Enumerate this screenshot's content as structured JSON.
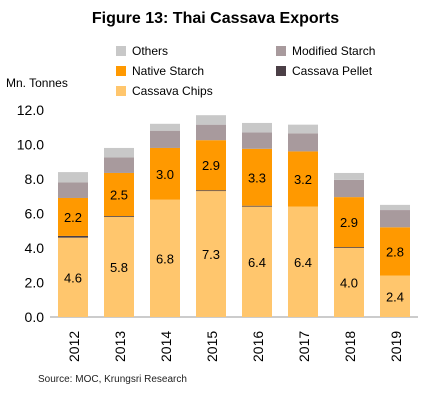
{
  "chart_data": {
    "type": "bar",
    "stacked": true,
    "title": "Figure 13: Thai Cassava Exports",
    "ylabel": "Mn. Tonnes",
    "xlabel": "",
    "categories": [
      "2012",
      "2013",
      "2014",
      "2015",
      "2016",
      "2017",
      "2018",
      "2019"
    ],
    "ylim": [
      0,
      12
    ],
    "yticks": [
      "0.0",
      "2.0",
      "4.0",
      "6.0",
      "8.0",
      "10.0",
      "12.0"
    ],
    "series": [
      {
        "name": "Cassava Chips",
        "color": "#FFC66D",
        "values": [
          4.6,
          5.8,
          6.8,
          7.3,
          6.4,
          6.4,
          4.0,
          2.4
        ],
        "labels": [
          "4.6",
          "5.8",
          "6.8",
          "7.3",
          "6.4",
          "6.4",
          "4.0",
          "2.4"
        ]
      },
      {
        "name": "Cassava Pellet",
        "color": "#4B3F46",
        "values": [
          0.1,
          0.05,
          0.0,
          0.05,
          0.05,
          0.0,
          0.05,
          0.0
        ]
      },
      {
        "name": "Native Starch",
        "color": "#FF9900",
        "values": [
          2.2,
          2.5,
          3.0,
          2.9,
          3.3,
          3.2,
          2.9,
          2.8
        ],
        "labels": [
          "2.2",
          "2.5",
          "3.0",
          "2.9",
          "3.3",
          "3.2",
          "2.9",
          "2.8"
        ]
      },
      {
        "name": "Modified Starch",
        "color": "#A89A9D",
        "values": [
          0.9,
          0.9,
          1.0,
          0.9,
          0.95,
          1.05,
          1.0,
          1.0
        ]
      },
      {
        "name": "Others",
        "color": "#C8C8C8",
        "values": [
          0.6,
          0.55,
          0.4,
          0.55,
          0.55,
          0.5,
          0.4,
          0.3
        ]
      }
    ],
    "legend": {
      "placement": "top",
      "items": [
        "Others",
        "Modified Starch",
        "Native Starch",
        "Cassava Pellet",
        "Cassava Chips"
      ]
    },
    "grid": false
  },
  "source": "Source: MOC, Krungsri Research"
}
